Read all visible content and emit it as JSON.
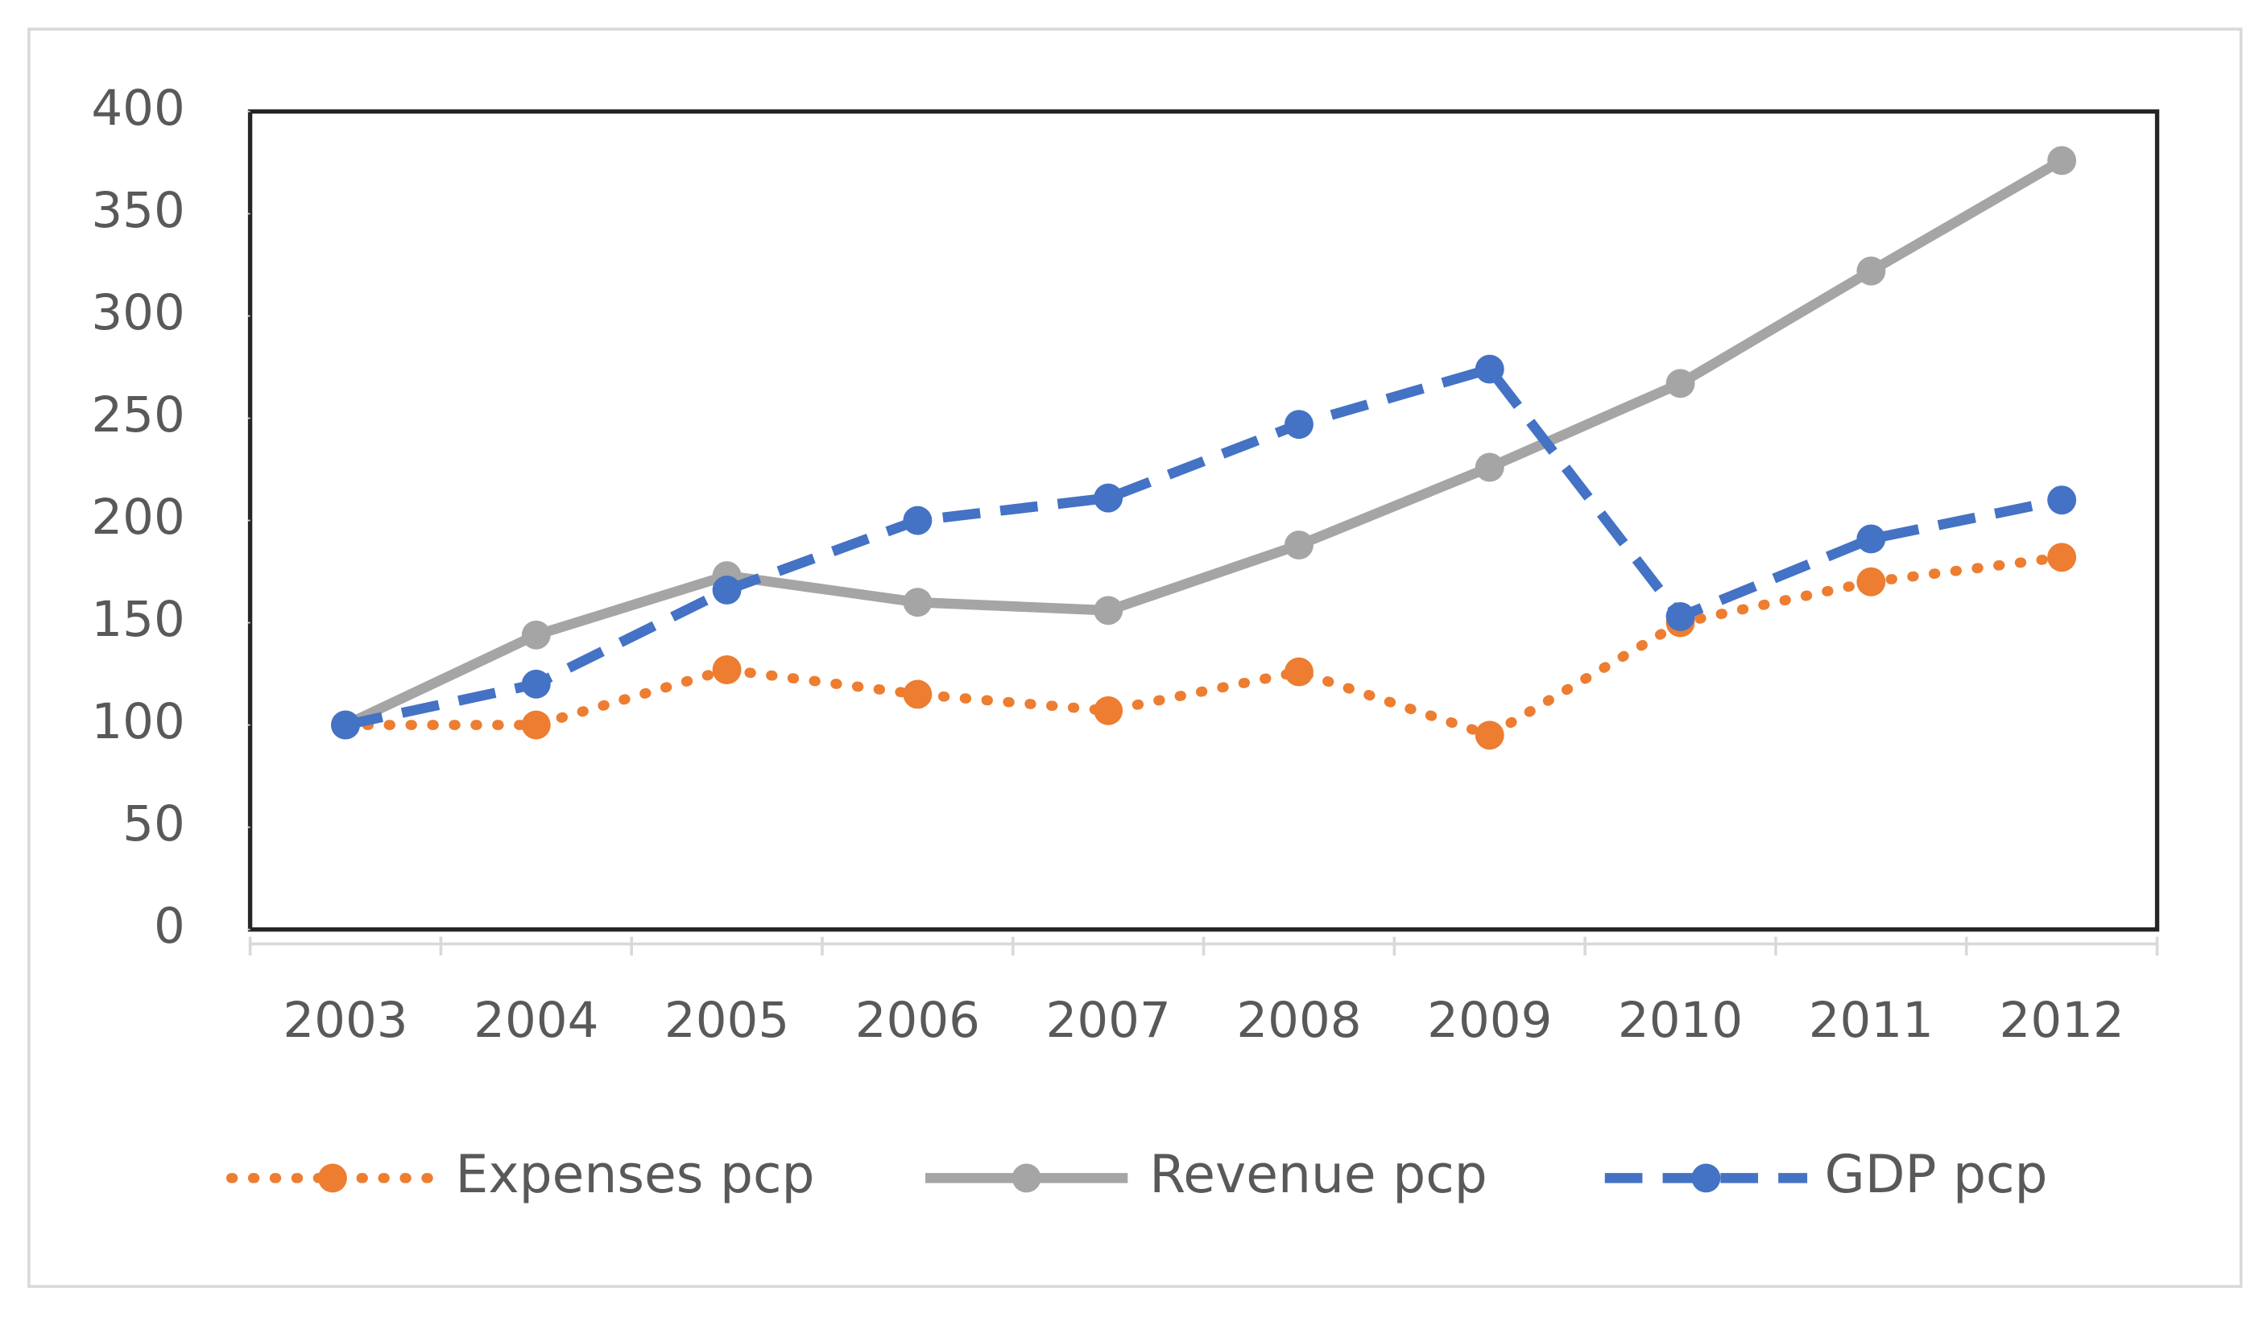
{
  "chart_data": {
    "type": "line",
    "categories": [
      "2003",
      "2004",
      "2005",
      "2006",
      "2007",
      "2008",
      "2009",
      "2010",
      "2011",
      "2012"
    ],
    "series": [
      {
        "name": "Expenses pcp",
        "color": "#ed7d31",
        "line_style": "dotted",
        "values": [
          100,
          100,
          127,
          115,
          107,
          126,
          95,
          150,
          170,
          182
        ]
      },
      {
        "name": "Revenue pcp",
        "color": "#a5a5a5",
        "line_style": "solid",
        "values": [
          100,
          144,
          173,
          160,
          156,
          188,
          226,
          267,
          322,
          376
        ]
      },
      {
        "name": "GDP pcp",
        "color": "#4472c4",
        "line_style": "dashed",
        "values": [
          100,
          120,
          166,
          200,
          211,
          247,
          274,
          153,
          191,
          210
        ]
      }
    ],
    "ylim": [
      0,
      400
    ],
    "yticks": [
      0,
      50,
      100,
      150,
      200,
      250,
      300,
      350,
      400
    ],
    "grid": false,
    "legend": "bottom"
  }
}
